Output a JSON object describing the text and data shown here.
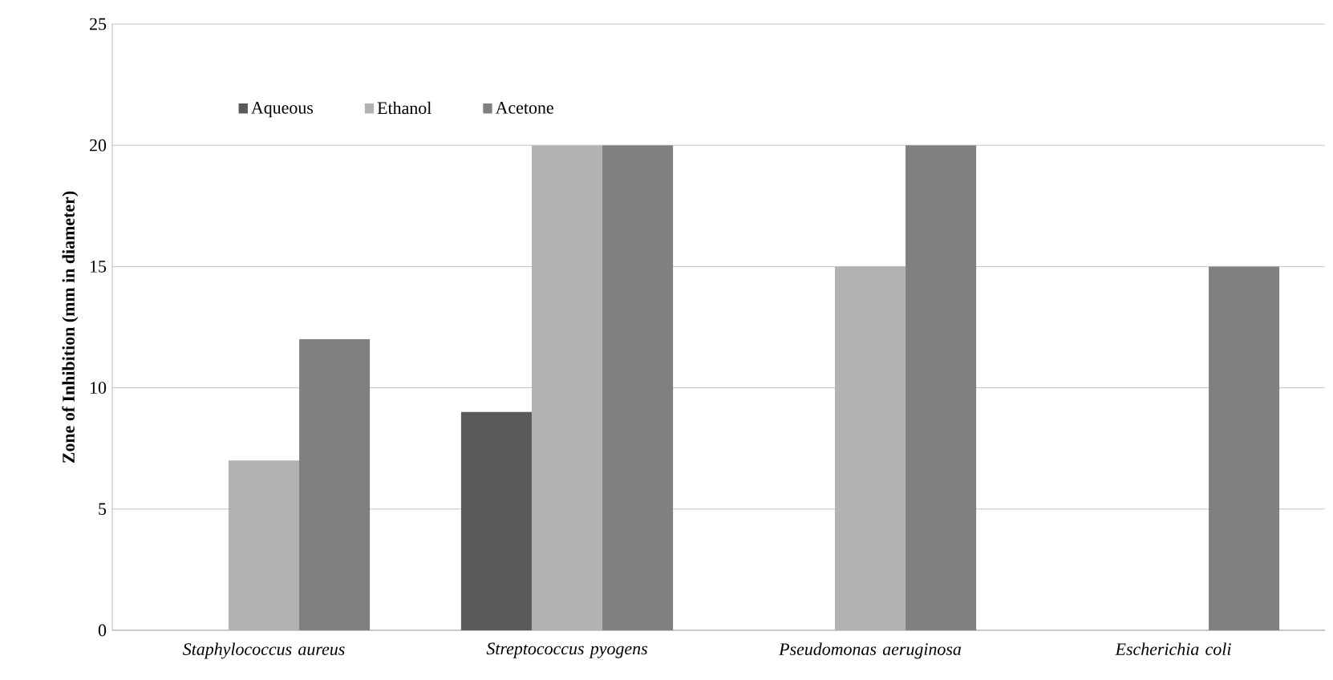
{
  "chart_data": {
    "type": "bar",
    "ylabel": "Zone of Inhibition (mm in diameter)",
    "categories": [
      "Staphylococcus aureus",
      "Streptococcus pyogens",
      "Pseudomonas aeruginosa",
      "Escherichia coli"
    ],
    "series": [
      {
        "name": "Aqueous",
        "color": "#595959",
        "values": [
          0,
          9,
          0,
          0
        ]
      },
      {
        "name": "Ethanol",
        "color": "#b2b2b2",
        "values": [
          7,
          20,
          15,
          0
        ]
      },
      {
        "name": "Acetone",
        "color": "#808080",
        "values": [
          12,
          20,
          20,
          15
        ]
      }
    ],
    "ylim": [
      0,
      25
    ],
    "yticks": [
      0,
      5,
      10,
      15,
      20,
      25
    ],
    "grid": "y",
    "legend": "top left"
  }
}
